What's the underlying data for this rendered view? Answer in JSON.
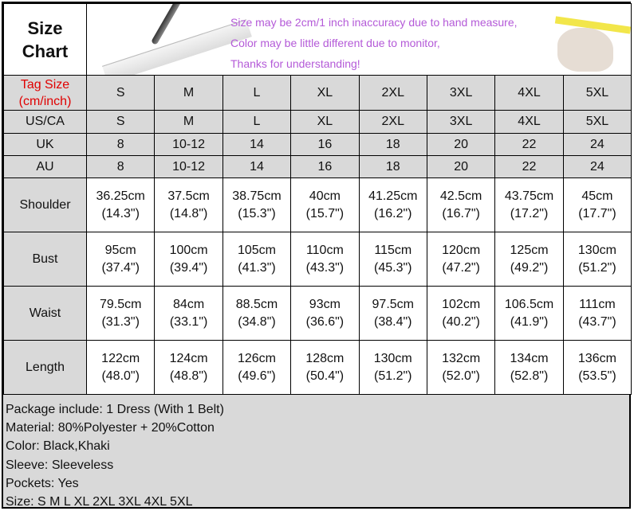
{
  "title_line1": "Size",
  "title_line2": "Chart",
  "notes": [
    "Size may be 2cm/1 inch inaccuracy due to hand measure,",
    "Color may be little different due to monitor,",
    "Thanks for understanding!"
  ],
  "tag_label_line1": "Tag Size",
  "tag_label_line2": "(cm/inch)",
  "tag_color": "#e00000",
  "note_color": "#b45ad8",
  "sizes": [
    "S",
    "M",
    "L",
    "XL",
    "2XL",
    "3XL",
    "4XL",
    "5XL"
  ],
  "size_rows": [
    {
      "label": "US/CA",
      "values": [
        "S",
        "M",
        "L",
        "XL",
        "2XL",
        "3XL",
        "4XL",
        "5XL"
      ]
    },
    {
      "label": "UK",
      "values": [
        "8",
        "10-12",
        "14",
        "16",
        "18",
        "20",
        "22",
        "24"
      ]
    },
    {
      "label": "AU",
      "values": [
        "8",
        "10-12",
        "14",
        "16",
        "18",
        "20",
        "22",
        "24"
      ]
    }
  ],
  "measure_rows": [
    {
      "label": "Shoulder",
      "cm": [
        "36.25cm",
        "37.5cm",
        "38.75cm",
        "40cm",
        "41.25cm",
        "42.5cm",
        "43.75cm",
        "45cm"
      ],
      "inch": [
        "(14.3\")",
        "(14.8\")",
        "(15.3\")",
        "(15.7\")",
        "(16.2\")",
        "(16.7\")",
        "(17.2\")",
        "(17.7\")"
      ]
    },
    {
      "label": "Bust",
      "cm": [
        "95cm",
        "100cm",
        "105cm",
        "110cm",
        "115cm",
        "120cm",
        "125cm",
        "130cm"
      ],
      "inch": [
        "(37.4\")",
        "(39.4\")",
        "(41.3\")",
        "(43.3\")",
        "(45.3\")",
        "(47.2\")",
        "(49.2\")",
        "(51.2\")"
      ]
    },
    {
      "label": "Waist",
      "cm": [
        "79.5cm",
        "84cm",
        "88.5cm",
        "93cm",
        "97.5cm",
        "102cm",
        "106.5cm",
        "111cm"
      ],
      "inch": [
        "(31.3\")",
        "(33.1\")",
        "(34.8\")",
        "(36.6\")",
        "(38.4\")",
        "(40.2\")",
        "(41.9\")",
        "(43.7\")"
      ]
    },
    {
      "label": "Length",
      "cm": [
        "122cm",
        "124cm",
        "126cm",
        "128cm",
        "130cm",
        "132cm",
        "134cm",
        "136cm"
      ],
      "inch": [
        "(48.0\")",
        "(48.8\")",
        "(49.6\")",
        "(50.4\")",
        "(51.2\")",
        "(52.0\")",
        "(52.8\")",
        "(53.5\")"
      ]
    }
  ],
  "footer": [
    "Package include: 1 Dress (With 1 Belt)",
    "Material: 80%Polyester + 20%Cotton",
    "Color: Black,Khaki",
    "Sleeve: Sleeveless",
    "Pockets: Yes",
    "Size: S M L XL 2XL 3XL 4XL 5XL"
  ]
}
